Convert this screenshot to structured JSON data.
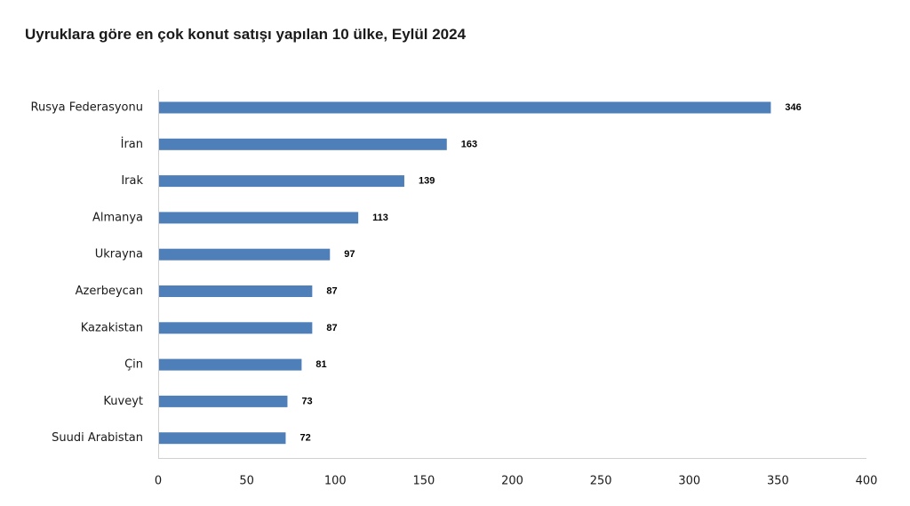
{
  "colors": {
    "bar": "#4f7fb8",
    "axis": "#d0d0d0"
  },
  "chart_data": {
    "type": "bar",
    "orientation": "horizontal",
    "title": "Uyruklara göre en çok konut satışı yapılan 10 ülke, Eylül 2024",
    "categories": [
      "Rusya Federasyonu",
      "İran",
      "Irak",
      "Almanya",
      "Ukrayna",
      "Azerbeycan",
      "Kazakistan",
      "Çin",
      "Kuveyt",
      "Suudi Arabistan"
    ],
    "values": [
      346,
      163,
      139,
      113,
      97,
      87,
      87,
      81,
      73,
      72
    ],
    "value_labels": [
      "346",
      "163",
      "139",
      "113",
      "97",
      "87",
      "87",
      "81",
      "73",
      "72"
    ],
    "xlim": [
      0,
      400
    ],
    "x_ticks": [
      0,
      50,
      100,
      150,
      200,
      250,
      300,
      350,
      400
    ],
    "x_tick_labels": [
      "0",
      "50",
      "100",
      "150",
      "200",
      "250",
      "300",
      "350",
      "400"
    ],
    "xlabel": "",
    "ylabel": "",
    "grid": false,
    "legend": "none"
  }
}
